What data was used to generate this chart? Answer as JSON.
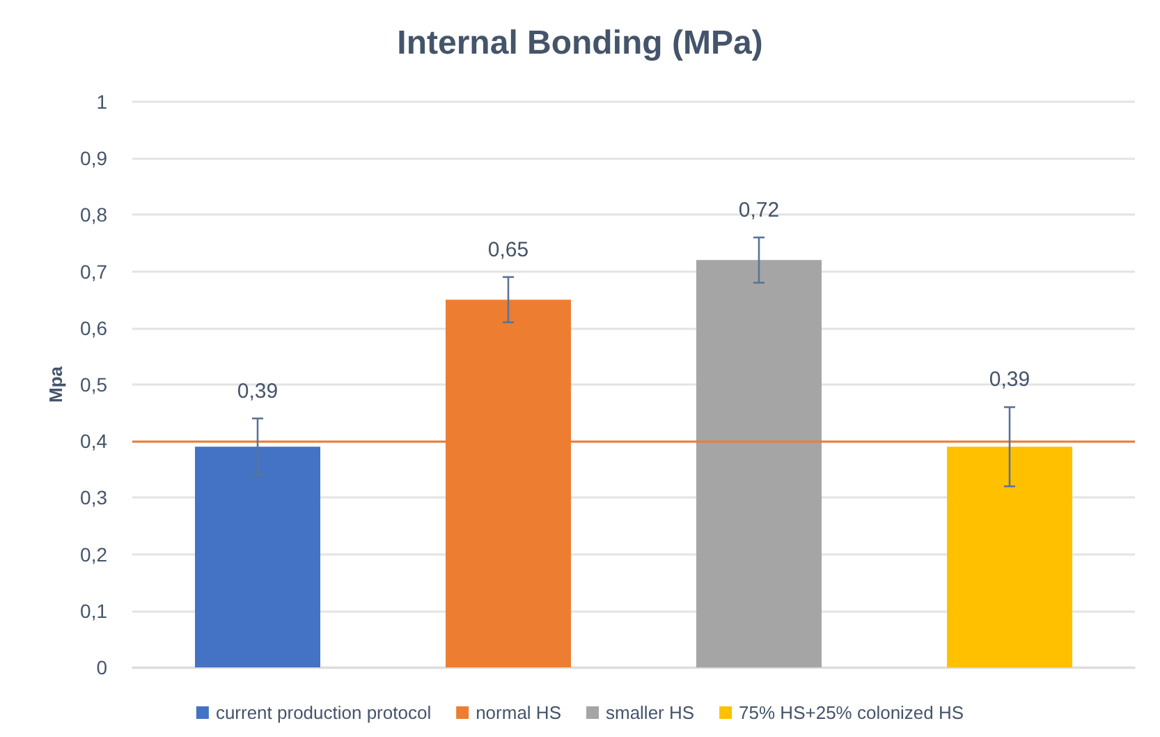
{
  "chart_data": {
    "type": "bar",
    "title": "Internal Bonding (MPa)",
    "ylabel": "Mpa",
    "categories": [
      null,
      null,
      null,
      null
    ],
    "series": [
      {
        "name": "current production protocol",
        "color": "#4472c4",
        "values": [
          0.39,
          null,
          null,
          null
        ],
        "errors": [
          [
            0.34,
            0.44
          ],
          null,
          null,
          null
        ],
        "value_labels": [
          "0,39",
          null,
          null,
          null
        ]
      },
      {
        "name": "normal HS",
        "color": "#ed7d31",
        "values": [
          null,
          0.65,
          null,
          null
        ],
        "errors": [
          null,
          [
            0.61,
            0.69
          ],
          null,
          null
        ],
        "value_labels": [
          null,
          "0,65",
          null,
          null
        ]
      },
      {
        "name": "smaller HS",
        "color": "#a5a5a5",
        "values": [
          null,
          null,
          0.72,
          null
        ],
        "errors": [
          null,
          null,
          [
            0.68,
            0.76
          ],
          null
        ],
        "value_labels": [
          null,
          null,
          "0,72",
          null
        ]
      },
      {
        "name": "75% HS+25% colonized HS",
        "color": "#ffc000",
        "values": [
          null,
          null,
          null,
          0.39
        ],
        "errors": [
          null,
          null,
          null,
          [
            0.32,
            0.46
          ]
        ],
        "value_labels": [
          null,
          null,
          null,
          "0,39"
        ]
      }
    ],
    "ylim": [
      0,
      1
    ],
    "yticks": [
      0,
      {
        "value": 0.1,
        "label": "0,1"
      },
      {
        "value": 0.2,
        "label": "0,2"
      },
      {
        "value": 0.3,
        "label": "0,3"
      },
      {
        "value": 0.4,
        "label": "0,4"
      },
      {
        "value": 0.5,
        "label": "0,5"
      },
      {
        "value": 0.6,
        "label": "0,6"
      },
      {
        "value": 0.7,
        "label": "0,7"
      },
      {
        "value": 0.8,
        "label": "0,8"
      },
      {
        "value": 0.9,
        "label": "0,9"
      },
      1
    ],
    "ref_lines": [
      {
        "axis": "y",
        "value": 0.4,
        "color": "#ed7d31"
      }
    ],
    "grid": "y",
    "legend": "bottom"
  }
}
